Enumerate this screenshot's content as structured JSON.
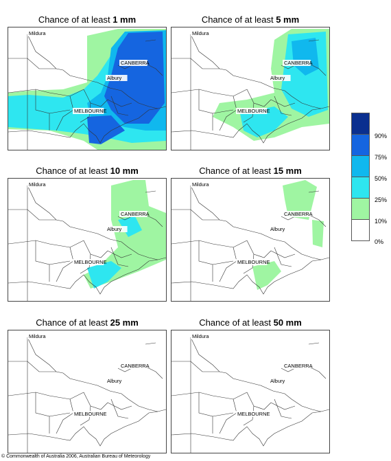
{
  "panels": [
    {
      "prefix": "Chance of at least ",
      "amount": "1 mm",
      "fill": "p1"
    },
    {
      "prefix": "Chance of at least ",
      "amount": "5 mm",
      "fill": "p5"
    },
    {
      "prefix": "Chance of at least ",
      "amount": "10 mm",
      "fill": "p10"
    },
    {
      "prefix": "Chance of at least ",
      "amount": "15 mm",
      "fill": "p15"
    },
    {
      "prefix": "Chance of at least ",
      "amount": "25 mm",
      "fill": "p25"
    },
    {
      "prefix": "Chance of at least ",
      "amount": "50 mm",
      "fill": "p50"
    }
  ],
  "places": {
    "mildura": "Mildura",
    "canberra": "CANBERRA",
    "albury": "Albury",
    "melbourne": "MELBOURNE"
  },
  "legend": {
    "ticks": [
      "90%",
      "75%",
      "50%",
      "25%",
      "10%",
      "0%"
    ],
    "colors": [
      "#0a2f8f",
      "#1565e0",
      "#10b8ee",
      "#2ee6f0",
      "#9ff5a2",
      "#ffffff"
    ]
  },
  "copyright": "© Commonwealth of Australia 2006, Australian Bureau of Meteorology"
}
